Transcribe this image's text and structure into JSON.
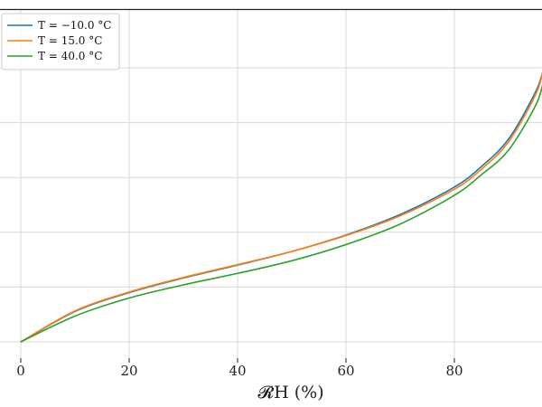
{
  "chart_data": {
    "type": "line",
    "title": "",
    "xlabel": "𝓡H (%)",
    "ylabel": "",
    "xlim": [
      -3,
      96.5
    ],
    "ylim": [
      -0.06,
      1.06
    ],
    "grid": true,
    "legend_placement": "top-left",
    "x_ticks": [
      {
        "value": 0,
        "label": "0"
      },
      {
        "value": 20,
        "label": "20"
      },
      {
        "value": 40,
        "label": "40"
      },
      {
        "value": 60,
        "label": "60"
      },
      {
        "value": 80,
        "label": "80"
      }
    ],
    "y_gridlines": [
      0,
      0.2,
      0.4,
      0.6,
      0.8,
      1.0
    ],
    "series": [
      {
        "name": "T = −10.0 °C",
        "color": "#1f77b4",
        "x": [
          0,
          10,
          20,
          30,
          40,
          50,
          60,
          70,
          80,
          85,
          90,
          95,
          96.5
        ],
        "y": [
          0.0,
          0.111,
          0.18,
          0.233,
          0.28,
          0.33,
          0.39,
          0.465,
          0.565,
          0.64,
          0.74,
          0.913,
          1.0
        ]
      },
      {
        "name": "T = 15.0 °C",
        "color": "#ff7f0e",
        "x": [
          0,
          10,
          20,
          30,
          40,
          50,
          60,
          70,
          80,
          85,
          90,
          95,
          96.5
        ],
        "y": [
          0.0,
          0.113,
          0.182,
          0.235,
          0.282,
          0.33,
          0.388,
          0.46,
          0.557,
          0.63,
          0.73,
          0.903,
          1.0
        ]
      },
      {
        "name": "T = 40.0 °C",
        "color": "#2ca02c",
        "x": [
          0,
          10,
          20,
          30,
          40,
          50,
          60,
          70,
          80,
          85,
          90,
          95,
          96.5
        ],
        "y": [
          0.0,
          0.094,
          0.16,
          0.208,
          0.25,
          0.296,
          0.355,
          0.43,
          0.535,
          0.61,
          0.7,
          0.863,
          0.955
        ]
      }
    ]
  }
}
